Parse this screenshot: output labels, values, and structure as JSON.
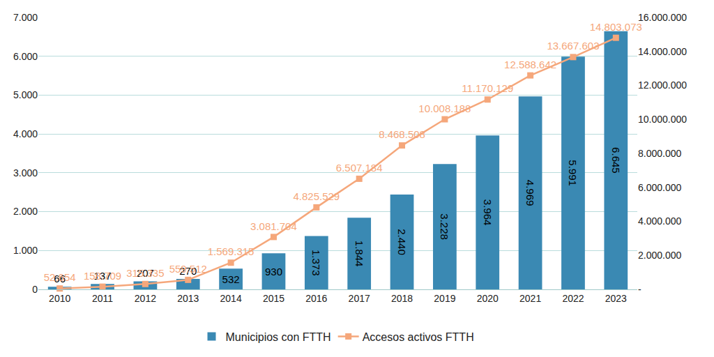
{
  "chart_data": {
    "type": "bar",
    "categories": [
      "2010",
      "2011",
      "2012",
      "2013",
      "2014",
      "2015",
      "2016",
      "2017",
      "2018",
      "2019",
      "2020",
      "2021",
      "2022",
      "2023"
    ],
    "series": [
      {
        "name": "Municipios con FTTH",
        "type": "bar",
        "color": "#3a89b3",
        "values": [
          66,
          137,
          207,
          270,
          532,
          930,
          1373,
          1844,
          2440,
          3228,
          3964,
          4969,
          5991,
          6645
        ],
        "value_labels": [
          "66",
          "137",
          "207",
          "270",
          "532",
          "930",
          "1.373",
          "1.844",
          "2.440",
          "3.228",
          "3.964",
          "4.969",
          "5.991",
          "6.645"
        ]
      },
      {
        "name": "Accesos activos FTTH",
        "type": "line",
        "axis": "y2",
        "color": "#f5a77b",
        "marker": "square",
        "values": [
          52654,
          158709,
          315335,
          559512,
          1569315,
          3081704,
          4825529,
          6507184,
          8468508,
          10008188,
          11170129,
          12588642,
          13667603,
          14803073
        ],
        "value_labels": [
          "52.654",
          "158.709",
          "315.335",
          "559.512",
          "1.569.315",
          "3.081.704",
          "4.825.529",
          "6.507.184",
          "8.468.508",
          "10.008.188",
          "11.170.129",
          "12.588.642",
          "13.667.603",
          "14.803.073"
        ]
      }
    ],
    "ylim": [
      0,
      7000
    ],
    "yticks": [
      0,
      {
        "value": 1000,
        "label": "1.000"
      },
      {
        "value": 2000,
        "label": "2.000"
      },
      {
        "value": 3000,
        "label": "3.000"
      },
      {
        "value": 4000,
        "label": "4.000"
      },
      {
        "value": 5000,
        "label": "5.000"
      },
      {
        "value": 6000,
        "label": "6.000"
      },
      {
        "value": 7000,
        "label": "7.000"
      }
    ],
    "y2lim": [
      0,
      16000000
    ],
    "y2ticks": [
      {
        "value": 0,
        "label": "-"
      },
      {
        "value": 2000000,
        "label": "2.000.000"
      },
      {
        "value": 4000000,
        "label": "4.000.000"
      },
      {
        "value": 6000000,
        "label": "6.000.000"
      },
      {
        "value": 8000000,
        "label": "8.000.000"
      },
      {
        "value": 10000000,
        "label": "10.000.000"
      },
      {
        "value": 12000000,
        "label": "12.000.000"
      },
      {
        "value": 14000000,
        "label": "14.000.000"
      },
      {
        "value": 16000000,
        "label": "16.000.000"
      }
    ],
    "grid": true,
    "legend": "bottom",
    "data_labels": true
  }
}
